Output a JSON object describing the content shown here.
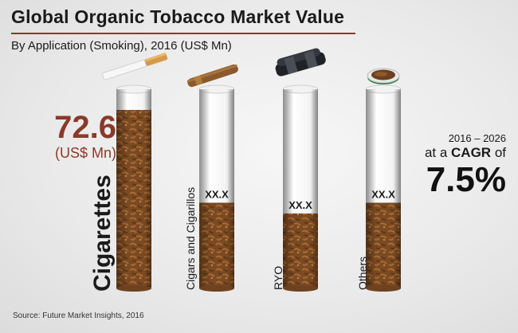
{
  "header": {
    "title": "Global Organic Tobacco Market Value",
    "subtitle": "By Application (Smoking), 2016 (US$ Mn)"
  },
  "highlight": {
    "value": "72.6",
    "unit": "(US$ Mn)"
  },
  "cagr": {
    "years": "2016 – 2026",
    "prefix": "at a ",
    "word": "CAGR",
    "suffix": " of",
    "value": "7.5%"
  },
  "source": "Source: Future Market Insights, 2016",
  "colors": {
    "accent": "#8a3a2a",
    "tube": "#ffffff",
    "tobacco": "#8b5a2b"
  },
  "chart_data": {
    "type": "bar",
    "title": "Global Organic Tobacco Market Value",
    "subtitle": "By Application (Smoking), 2016 (US$ Mn)",
    "categories": [
      "Cigarettes",
      "Cigars and Cigarillos",
      "RYO",
      "Others"
    ],
    "values": [
      72.6,
      null,
      null,
      null
    ],
    "value_labels": [
      "72.6",
      "XX.X",
      "XX.X",
      "XX.X"
    ],
    "value_fractions": [
      1.0,
      0.48,
      0.42,
      0.48
    ],
    "icons": [
      "cigarette-icon",
      "cigar-icon",
      "rolling-machine-icon",
      "tobacco-tin-icon"
    ],
    "ylabel": "",
    "grid": false
  }
}
